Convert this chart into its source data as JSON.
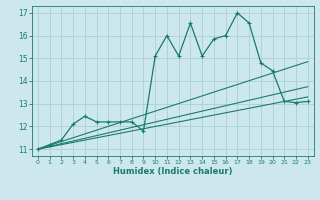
{
  "xlabel": "Humidex (Indice chaleur)",
  "ylabel": "",
  "xlim": [
    -0.5,
    23.5
  ],
  "ylim": [
    10.7,
    17.3
  ],
  "xticks": [
    0,
    1,
    2,
    3,
    4,
    5,
    6,
    7,
    8,
    9,
    10,
    11,
    12,
    13,
    14,
    15,
    16,
    17,
    18,
    19,
    20,
    21,
    22,
    23
  ],
  "yticks": [
    11,
    12,
    13,
    14,
    15,
    16,
    17
  ],
  "bg_color": "#cde8ec",
  "line_color": "#1a7a6e",
  "grid_color": "#aed4d8",
  "main_series_x": [
    0,
    1,
    2,
    3,
    4,
    5,
    6,
    7,
    8,
    9,
    10,
    11,
    12,
    13,
    14,
    15,
    16,
    17,
    18,
    19,
    20,
    21,
    22,
    23
  ],
  "main_series_y": [
    11.0,
    11.2,
    11.4,
    12.1,
    12.45,
    12.2,
    12.2,
    12.2,
    12.2,
    11.8,
    15.1,
    16.0,
    15.1,
    16.55,
    15.1,
    15.85,
    16.0,
    17.0,
    16.55,
    14.8,
    14.45,
    13.1,
    13.05,
    13.1
  ],
  "trend1_x": [
    0,
    23
  ],
  "trend1_y": [
    11.0,
    14.85
  ],
  "trend2_x": [
    0,
    23
  ],
  "trend2_y": [
    11.0,
    13.3
  ],
  "trend3_x": [
    0,
    23
  ],
  "trend3_y": [
    11.0,
    13.75
  ]
}
